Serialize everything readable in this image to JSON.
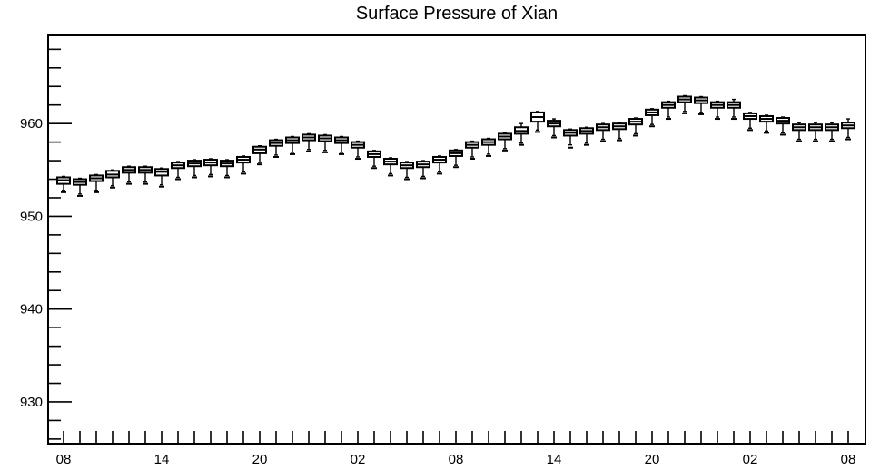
{
  "chart_data": {
    "type": "box",
    "title": "Surface Pressure of Xian",
    "xlabel": "",
    "ylabel": "",
    "ylim": [
      925.5,
      969.5
    ],
    "yticks": [
      930,
      940,
      950,
      960
    ],
    "xtick_labels": [
      "08",
      "14",
      "20",
      "02",
      "08",
      "14",
      "20",
      "02",
      "08"
    ],
    "grid": false,
    "boxes": [
      {
        "x": 0,
        "q1": 953.5,
        "median": 953.9,
        "q3": 954.2,
        "whisker_low": 952.8,
        "whisker_high": 954.3,
        "min": 952.6
      },
      {
        "x": 1,
        "q1": 953.4,
        "median": 953.7,
        "q3": 954.0,
        "whisker_low": 952.4,
        "whisker_high": 954.1,
        "min": 952.2
      },
      {
        "x": 2,
        "q1": 953.8,
        "median": 954.1,
        "q3": 954.4,
        "whisker_low": 952.8,
        "whisker_high": 954.5,
        "min": 952.6
      },
      {
        "x": 3,
        "q1": 954.2,
        "median": 954.5,
        "q3": 954.9,
        "whisker_low": 953.3,
        "whisker_high": 955.0,
        "min": 953.1
      },
      {
        "x": 4,
        "q1": 954.7,
        "median": 955.0,
        "q3": 955.3,
        "whisker_low": 953.7,
        "whisker_high": 955.4,
        "min": 953.5
      },
      {
        "x": 5,
        "q1": 954.7,
        "median": 955.0,
        "q3": 955.3,
        "whisker_low": 953.7,
        "whisker_high": 955.4,
        "min": 953.5
      },
      {
        "x": 6,
        "q1": 954.4,
        "median": 954.8,
        "q3": 955.1,
        "whisker_low": 953.4,
        "whisker_high": 955.2,
        "min": 953.2
      },
      {
        "x": 7,
        "q1": 955.2,
        "median": 955.5,
        "q3": 955.8,
        "whisker_low": 954.2,
        "whisker_high": 955.9,
        "min": 954.0
      },
      {
        "x": 8,
        "q1": 955.4,
        "median": 955.7,
        "q3": 956.0,
        "whisker_low": 954.4,
        "whisker_high": 956.1,
        "min": 954.2
      },
      {
        "x": 9,
        "q1": 955.5,
        "median": 955.8,
        "q3": 956.1,
        "whisker_low": 954.5,
        "whisker_high": 956.2,
        "min": 954.3
      },
      {
        "x": 10,
        "q1": 955.4,
        "median": 955.7,
        "q3": 956.0,
        "whisker_low": 954.4,
        "whisker_high": 956.1,
        "min": 954.2
      },
      {
        "x": 11,
        "q1": 955.8,
        "median": 956.1,
        "q3": 956.4,
        "whisker_low": 954.8,
        "whisker_high": 956.5,
        "min": 954.6
      },
      {
        "x": 12,
        "q1": 956.8,
        "median": 957.2,
        "q3": 957.5,
        "whisker_low": 955.8,
        "whisker_high": 957.6,
        "min": 955.6
      },
      {
        "x": 13,
        "q1": 957.6,
        "median": 957.9,
        "q3": 958.2,
        "whisker_low": 956.6,
        "whisker_high": 958.3,
        "min": 956.4
      },
      {
        "x": 14,
        "q1": 957.9,
        "median": 958.2,
        "q3": 958.5,
        "whisker_low": 956.9,
        "whisker_high": 958.6,
        "min": 956.7
      },
      {
        "x": 15,
        "q1": 958.2,
        "median": 958.5,
        "q3": 958.8,
        "whisker_low": 957.2,
        "whisker_high": 958.9,
        "min": 957.0
      },
      {
        "x": 16,
        "q1": 958.1,
        "median": 958.4,
        "q3": 958.7,
        "whisker_low": 957.1,
        "whisker_high": 958.8,
        "min": 956.9
      },
      {
        "x": 17,
        "q1": 957.9,
        "median": 958.2,
        "q3": 958.5,
        "whisker_low": 956.9,
        "whisker_high": 958.6,
        "min": 956.7
      },
      {
        "x": 18,
        "q1": 957.4,
        "median": 957.7,
        "q3": 958.0,
        "whisker_low": 956.4,
        "whisker_high": 958.1,
        "min": 956.2
      },
      {
        "x": 19,
        "q1": 956.4,
        "median": 956.7,
        "q3": 957.0,
        "whisker_low": 955.4,
        "whisker_high": 957.1,
        "min": 955.2
      },
      {
        "x": 20,
        "q1": 955.6,
        "median": 955.9,
        "q3": 956.2,
        "whisker_low": 954.6,
        "whisker_high": 956.3,
        "min": 954.4
      },
      {
        "x": 21,
        "q1": 955.2,
        "median": 955.5,
        "q3": 955.8,
        "whisker_low": 954.2,
        "whisker_high": 955.9,
        "min": 954.0
      },
      {
        "x": 22,
        "q1": 955.3,
        "median": 955.6,
        "q3": 955.9,
        "whisker_low": 954.3,
        "whisker_high": 956.0,
        "min": 954.1
      },
      {
        "x": 23,
        "q1": 955.8,
        "median": 956.1,
        "q3": 956.4,
        "whisker_low": 954.8,
        "whisker_high": 956.5,
        "min": 954.6
      },
      {
        "x": 24,
        "q1": 956.5,
        "median": 956.8,
        "q3": 957.1,
        "whisker_low": 955.5,
        "whisker_high": 957.2,
        "min": 955.3
      },
      {
        "x": 25,
        "q1": 957.4,
        "median": 957.7,
        "q3": 958.0,
        "whisker_low": 956.4,
        "whisker_high": 958.1,
        "min": 956.2
      },
      {
        "x": 26,
        "q1": 957.7,
        "median": 958.0,
        "q3": 958.3,
        "whisker_low": 956.7,
        "whisker_high": 958.4,
        "min": 956.5
      },
      {
        "x": 27,
        "q1": 958.3,
        "median": 958.6,
        "q3": 958.9,
        "whisker_low": 957.3,
        "whisker_high": 959.0,
        "min": 957.1
      },
      {
        "x": 28,
        "q1": 958.9,
        "median": 959.2,
        "q3": 959.6,
        "whisker_low": 957.9,
        "whisker_high": 960.0,
        "min": 957.7
      },
      {
        "x": 29,
        "q1": 960.2,
        "median": 960.7,
        "q3": 961.2,
        "whisker_low": 959.3,
        "whisker_high": 961.3,
        "min": 959.1
      },
      {
        "x": 30,
        "q1": 959.7,
        "median": 960.0,
        "q3": 960.3,
        "whisker_low": 958.7,
        "whisker_high": 960.5,
        "min": 958.5
      },
      {
        "x": 31,
        "q1": 958.7,
        "median": 959.0,
        "q3": 959.3,
        "whisker_low": 957.7,
        "whisker_high": 959.4,
        "min": 957.4
      },
      {
        "x": 32,
        "q1": 958.9,
        "median": 959.2,
        "q3": 959.5,
        "whisker_low": 957.9,
        "whisker_high": 959.6,
        "min": 957.7
      },
      {
        "x": 33,
        "q1": 959.3,
        "median": 959.6,
        "q3": 959.9,
        "whisker_low": 958.3,
        "whisker_high": 960.0,
        "min": 958.1
      },
      {
        "x": 34,
        "q1": 959.4,
        "median": 959.7,
        "q3": 960.0,
        "whisker_low": 958.4,
        "whisker_high": 960.1,
        "min": 958.2
      },
      {
        "x": 35,
        "q1": 959.9,
        "median": 960.2,
        "q3": 960.5,
        "whisker_low": 958.9,
        "whisker_high": 960.6,
        "min": 958.7
      },
      {
        "x": 36,
        "q1": 960.9,
        "median": 961.2,
        "q3": 961.5,
        "whisker_low": 959.9,
        "whisker_high": 961.6,
        "min": 959.7
      },
      {
        "x": 37,
        "q1": 961.7,
        "median": 962.0,
        "q3": 962.3,
        "whisker_low": 960.7,
        "whisker_high": 962.4,
        "min": 960.5
      },
      {
        "x": 38,
        "q1": 962.3,
        "median": 962.6,
        "q3": 962.9,
        "whisker_low": 961.3,
        "whisker_high": 963.0,
        "min": 961.1
      },
      {
        "x": 39,
        "q1": 962.2,
        "median": 962.5,
        "q3": 962.8,
        "whisker_low": 961.2,
        "whisker_high": 962.9,
        "min": 961.0
      },
      {
        "x": 40,
        "q1": 961.7,
        "median": 962.0,
        "q3": 962.3,
        "whisker_low": 960.7,
        "whisker_high": 962.4,
        "min": 960.5
      },
      {
        "x": 41,
        "q1": 961.7,
        "median": 962.0,
        "q3": 962.3,
        "whisker_low": 960.7,
        "whisker_high": 962.6,
        "min": 960.5
      },
      {
        "x": 42,
        "q1": 960.5,
        "median": 960.8,
        "q3": 961.1,
        "whisker_low": 959.5,
        "whisker_high": 961.2,
        "min": 959.3
      },
      {
        "x": 43,
        "q1": 960.2,
        "median": 960.5,
        "q3": 960.8,
        "whisker_low": 959.2,
        "whisker_high": 960.9,
        "min": 959.0
      },
      {
        "x": 44,
        "q1": 960.0,
        "median": 960.3,
        "q3": 960.6,
        "whisker_low": 959.0,
        "whisker_high": 960.7,
        "min": 958.8
      },
      {
        "x": 45,
        "q1": 959.3,
        "median": 959.6,
        "q3": 959.9,
        "whisker_low": 958.3,
        "whisker_high": 960.1,
        "min": 958.1
      },
      {
        "x": 46,
        "q1": 959.3,
        "median": 959.6,
        "q3": 959.9,
        "whisker_low": 958.3,
        "whisker_high": 960.1,
        "min": 958.1
      },
      {
        "x": 47,
        "q1": 959.3,
        "median": 959.6,
        "q3": 959.9,
        "whisker_low": 958.3,
        "whisker_high": 960.1,
        "min": 958.1
      },
      {
        "x": 48,
        "q1": 959.5,
        "median": 959.8,
        "q3": 960.1,
        "whisker_low": 958.5,
        "whisker_high": 960.5,
        "min": 958.3
      }
    ]
  }
}
